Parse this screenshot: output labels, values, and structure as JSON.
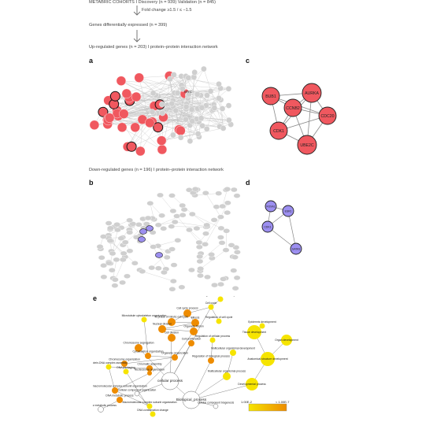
{
  "flowchart": {
    "cohorts": "METABRIC COHORTS I Discovery (n = 939) Validation (n = 845)",
    "fold_change": "Fold change ≥1.5 / ≤ −1.5",
    "genes_de": "Genes differentially expressed (n = 399)",
    "up_network": "Up-regulated genes (n = 203) I protein–protein interaction network",
    "down_network": "Down-regulated genes (n = 196) I protein–protein interaction network"
  },
  "panels": {
    "a": "a",
    "b": "b",
    "c": "c",
    "d": "d",
    "e": "e"
  },
  "panel_a": {
    "hub_label": "MYC"
  },
  "panel_c": {
    "nodes": [
      {
        "id": "aurka",
        "label": "AURKA"
      },
      {
        "id": "bub1",
        "label": "BUB1"
      },
      {
        "id": "ccnb2",
        "label": "CCNB2"
      },
      {
        "id": "cdc20",
        "label": "CDC20"
      },
      {
        "id": "cdk1",
        "label": "CDK1"
      },
      {
        "id": "ube2c",
        "label": "UBE2C"
      }
    ]
  },
  "panel_d": {
    "nodes": [
      {
        "id": "foxa1",
        "label": "FOXA1"
      },
      {
        "id": "esr1",
        "label": "ESR1"
      },
      {
        "id": "cdk1",
        "label": "CDK1"
      },
      {
        "id": "gata3",
        "label": "GATA3"
      }
    ]
  },
  "panel_e": {
    "terms": {
      "regulation_cell_cycle": "Regulation of mitotic cell cycle",
      "cell_cycle": "Cell cycle",
      "cell_cycle_process": "Cell cycle process",
      "regulation_cell_cycle2": "Regulation of cell cycle",
      "epidermis_dev": "Epidermis development",
      "tissue_dev": "Tissue development",
      "organ_dev": "Organ development",
      "mt_cytoskeleton": "Microtubule cytoskeleton organization",
      "m_phase": "M phase of mitotic cell cycle",
      "mitosis": "Mitosis",
      "nuclear_division": "Nuclear division",
      "organelle_fission": "Organelle fission",
      "cell_division": "Cell division",
      "regulation_cellular": "Regulation of cellular process",
      "cell_proliferation": "Cell proliferation",
      "chromosome_seg": "Chromosome segregation",
      "cytoskeleton_org": "Cytoskeleton organization",
      "organelle_org": "Organelle organization",
      "regulation_bio": "Regulation of biological process",
      "multicellular_dev": "Multicellular organismal development",
      "anatomical_dev": "Anatomical structure development",
      "chromosome_org": "Chromosome organization",
      "protein_dna_complex": "Protein-DNA complex assembly",
      "dna_packaging": "DNA packaging",
      "chromatin_assembly": "Chromatin assembly",
      "nucleosome_org": "Nucleosome organization",
      "cellular_process": "cellular process",
      "biological_process": "Biological_process",
      "multicellular_process": "Multicellular organismal process",
      "developmental_process": "Developmental process",
      "cellular_macromolecular": "Cellular macromolecular complex subunit organization",
      "cellular_component_org": "Cellular component organization",
      "dna_metabolic": "DNA metabolic process",
      "cellular_component_biogenesis": "Cellular component biogenesis",
      "macromolecular_complex": "Macromolecular complex subunit organization",
      "dna_conformation": "DNA conformation change",
      "cellular_metabolic": "Cellular metabolic process"
    },
    "legend": {
      "low": "1.00E-2",
      "high": "< 1.00E-7"
    }
  },
  "colors": {
    "up_node": "#f0585f",
    "down_node": "#9c8ff0",
    "grey_node": "#cfcfcf",
    "edge": "#bdbdbd",
    "go_yellow": "#f6e400",
    "go_orange": "#ee8c00"
  }
}
